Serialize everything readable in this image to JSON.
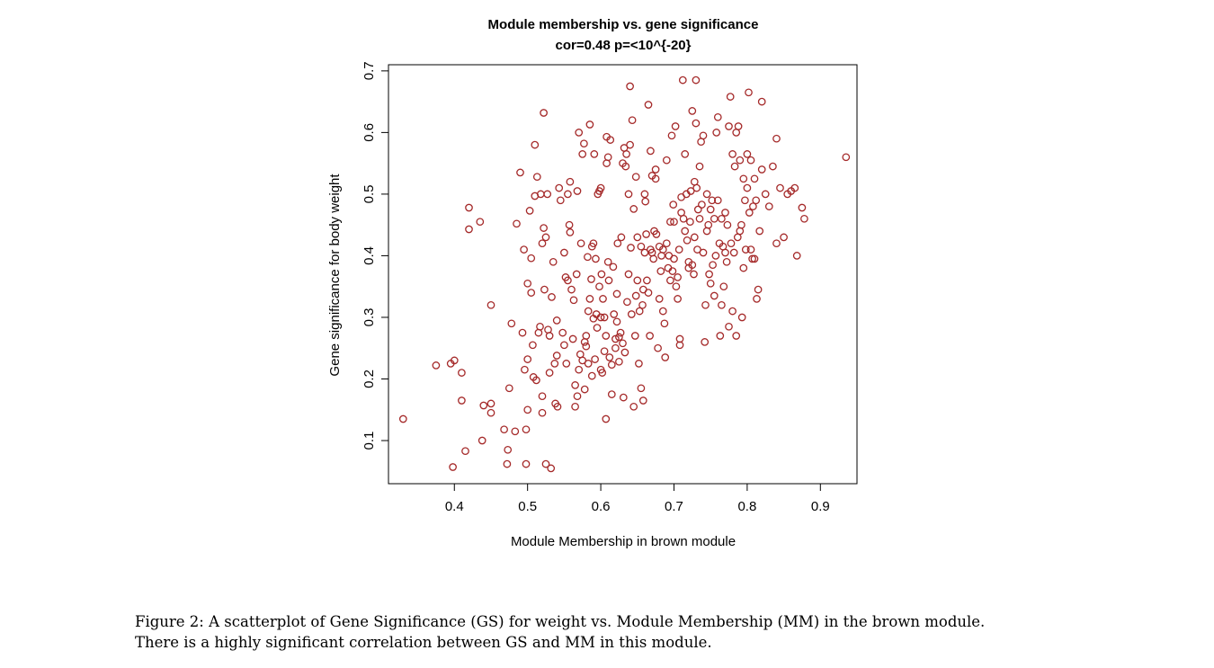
{
  "chart_data": {
    "type": "scatter",
    "title": "Module membership vs. gene significance",
    "subtitle": "cor=0.48 p=<10^{-20}",
    "xlabel": "Module Membership in brown module",
    "ylabel": "Gene significance for body weight",
    "xlim": [
      0.31,
      0.95
    ],
    "ylim": [
      0.03,
      0.71
    ],
    "x_ticks": [
      0.4,
      0.5,
      0.6,
      0.7,
      0.8,
      0.9
    ],
    "y_ticks": [
      0.1,
      0.2,
      0.3,
      0.4,
      0.5,
      0.6,
      0.7
    ],
    "x_tick_labels": [
      "0.4",
      "0.5",
      "0.6",
      "0.7",
      "0.8",
      "0.9"
    ],
    "y_tick_labels": [
      "0.1",
      "0.2",
      "0.3",
      "0.4",
      "0.5",
      "0.6",
      "0.7"
    ],
    "grid": false,
    "marker_color": "#a52a2a",
    "points": [
      [
        0.33,
        0.135
      ],
      [
        0.375,
        0.222
      ],
      [
        0.395,
        0.225
      ],
      [
        0.4,
        0.23
      ],
      [
        0.398,
        0.057
      ],
      [
        0.41,
        0.21
      ],
      [
        0.41,
        0.165
      ],
      [
        0.415,
        0.083
      ],
      [
        0.42,
        0.478
      ],
      [
        0.42,
        0.443
      ],
      [
        0.435,
        0.455
      ],
      [
        0.438,
        0.1
      ],
      [
        0.44,
        0.157
      ],
      [
        0.45,
        0.145
      ],
      [
        0.45,
        0.16
      ],
      [
        0.45,
        0.32
      ],
      [
        0.468,
        0.118
      ],
      [
        0.472,
        0.062
      ],
      [
        0.473,
        0.085
      ],
      [
        0.475,
        0.185
      ],
      [
        0.478,
        0.29
      ],
      [
        0.483,
        0.115
      ],
      [
        0.485,
        0.452
      ],
      [
        0.49,
        0.535
      ],
      [
        0.493,
        0.275
      ],
      [
        0.495,
        0.41
      ],
      [
        0.496,
        0.215
      ],
      [
        0.498,
        0.118
      ],
      [
        0.498,
        0.062
      ],
      [
        0.5,
        0.232
      ],
      [
        0.5,
        0.355
      ],
      [
        0.5,
        0.15
      ],
      [
        0.503,
        0.473
      ],
      [
        0.505,
        0.34
      ],
      [
        0.505,
        0.396
      ],
      [
        0.507,
        0.255
      ],
      [
        0.508,
        0.203
      ],
      [
        0.51,
        0.497
      ],
      [
        0.51,
        0.58
      ],
      [
        0.512,
        0.198
      ],
      [
        0.513,
        0.528
      ],
      [
        0.515,
        0.275
      ],
      [
        0.517,
        0.285
      ],
      [
        0.518,
        0.5
      ],
      [
        0.52,
        0.172
      ],
      [
        0.52,
        0.145
      ],
      [
        0.52,
        0.42
      ],
      [
        0.522,
        0.632
      ],
      [
        0.522,
        0.445
      ],
      [
        0.523,
        0.345
      ],
      [
        0.525,
        0.43
      ],
      [
        0.525,
        0.062
      ],
      [
        0.527,
        0.5
      ],
      [
        0.528,
        0.28
      ],
      [
        0.53,
        0.27
      ],
      [
        0.53,
        0.21
      ],
      [
        0.532,
        0.055
      ],
      [
        0.533,
        0.333
      ],
      [
        0.535,
        0.39
      ],
      [
        0.537,
        0.225
      ],
      [
        0.538,
        0.16
      ],
      [
        0.54,
        0.238
      ],
      [
        0.54,
        0.295
      ],
      [
        0.541,
        0.155
      ],
      [
        0.543,
        0.51
      ],
      [
        0.545,
        0.49
      ],
      [
        0.548,
        0.275
      ],
      [
        0.55,
        0.255
      ],
      [
        0.55,
        0.405
      ],
      [
        0.552,
        0.365
      ],
      [
        0.553,
        0.225
      ],
      [
        0.555,
        0.5
      ],
      [
        0.555,
        0.36
      ],
      [
        0.557,
        0.45
      ],
      [
        0.558,
        0.52
      ],
      [
        0.558,
        0.438
      ],
      [
        0.56,
        0.345
      ],
      [
        0.562,
        0.265
      ],
      [
        0.563,
        0.328
      ],
      [
        0.565,
        0.19
      ],
      [
        0.565,
        0.155
      ],
      [
        0.567,
        0.37
      ],
      [
        0.568,
        0.505
      ],
      [
        0.568,
        0.172
      ],
      [
        0.57,
        0.6
      ],
      [
        0.57,
        0.215
      ],
      [
        0.572,
        0.24
      ],
      [
        0.573,
        0.42
      ],
      [
        0.575,
        0.23
      ],
      [
        0.575,
        0.565
      ],
      [
        0.577,
        0.582
      ],
      [
        0.578,
        0.183
      ],
      [
        0.578,
        0.26
      ],
      [
        0.58,
        0.27
      ],
      [
        0.58,
        0.253
      ],
      [
        0.582,
        0.398
      ],
      [
        0.583,
        0.31
      ],
      [
        0.583,
        0.225
      ],
      [
        0.585,
        0.33
      ],
      [
        0.585,
        0.613
      ],
      [
        0.587,
        0.362
      ],
      [
        0.588,
        0.415
      ],
      [
        0.588,
        0.205
      ],
      [
        0.59,
        0.298
      ],
      [
        0.59,
        0.42
      ],
      [
        0.591,
        0.565
      ],
      [
        0.592,
        0.232
      ],
      [
        0.593,
        0.395
      ],
      [
        0.594,
        0.305
      ],
      [
        0.595,
        0.283
      ],
      [
        0.596,
        0.5
      ],
      [
        0.598,
        0.35
      ],
      [
        0.598,
        0.505
      ],
      [
        0.6,
        0.3
      ],
      [
        0.6,
        0.51
      ],
      [
        0.6,
        0.215
      ],
      [
        0.601,
        0.37
      ],
      [
        0.602,
        0.21
      ],
      [
        0.603,
        0.33
      ],
      [
        0.605,
        0.3
      ],
      [
        0.605,
        0.245
      ],
      [
        0.607,
        0.135
      ],
      [
        0.607,
        0.27
      ],
      [
        0.608,
        0.55
      ],
      [
        0.608,
        0.593
      ],
      [
        0.61,
        0.39
      ],
      [
        0.61,
        0.56
      ],
      [
        0.611,
        0.36
      ],
      [
        0.612,
        0.235
      ],
      [
        0.613,
        0.588
      ],
      [
        0.615,
        0.175
      ],
      [
        0.615,
        0.223
      ],
      [
        0.617,
        0.382
      ],
      [
        0.618,
        0.305
      ],
      [
        0.62,
        0.265
      ],
      [
        0.62,
        0.25
      ],
      [
        0.622,
        0.293
      ],
      [
        0.622,
        0.338
      ],
      [
        0.623,
        0.42
      ],
      [
        0.625,
        0.228
      ],
      [
        0.625,
        0.268
      ],
      [
        0.627,
        0.275
      ],
      [
        0.628,
        0.43
      ],
      [
        0.63,
        0.258
      ],
      [
        0.63,
        0.55
      ],
      [
        0.631,
        0.17
      ],
      [
        0.632,
        0.575
      ],
      [
        0.633,
        0.243
      ],
      [
        0.634,
        0.545
      ],
      [
        0.635,
        0.565
      ],
      [
        0.636,
        0.325
      ],
      [
        0.638,
        0.5
      ],
      [
        0.638,
        0.37
      ],
      [
        0.64,
        0.675
      ],
      [
        0.64,
        0.58
      ],
      [
        0.641,
        0.413
      ],
      [
        0.642,
        0.305
      ],
      [
        0.643,
        0.62
      ],
      [
        0.645,
        0.476
      ],
      [
        0.645,
        0.155
      ],
      [
        0.647,
        0.27
      ],
      [
        0.648,
        0.335
      ],
      [
        0.648,
        0.528
      ],
      [
        0.65,
        0.36
      ],
      [
        0.65,
        0.43
      ],
      [
        0.652,
        0.225
      ],
      [
        0.653,
        0.31
      ],
      [
        0.655,
        0.185
      ],
      [
        0.655,
        0.415
      ],
      [
        0.657,
        0.32
      ],
      [
        0.658,
        0.165
      ],
      [
        0.658,
        0.345
      ],
      [
        0.66,
        0.405
      ],
      [
        0.66,
        0.5
      ],
      [
        0.661,
        0.488
      ],
      [
        0.662,
        0.435
      ],
      [
        0.663,
        0.36
      ],
      [
        0.665,
        0.645
      ],
      [
        0.665,
        0.34
      ],
      [
        0.667,
        0.27
      ],
      [
        0.668,
        0.41
      ],
      [
        0.668,
        0.57
      ],
      [
        0.67,
        0.53
      ],
      [
        0.67,
        0.405
      ],
      [
        0.672,
        0.395
      ],
      [
        0.673,
        0.44
      ],
      [
        0.675,
        0.525
      ],
      [
        0.675,
        0.54
      ],
      [
        0.676,
        0.435
      ],
      [
        0.678,
        0.25
      ],
      [
        0.68,
        0.415
      ],
      [
        0.68,
        0.33
      ],
      [
        0.682,
        0.375
      ],
      [
        0.683,
        0.4
      ],
      [
        0.685,
        0.31
      ],
      [
        0.685,
        0.41
      ],
      [
        0.687,
        0.29
      ],
      [
        0.688,
        0.235
      ],
      [
        0.69,
        0.555
      ],
      [
        0.69,
        0.42
      ],
      [
        0.692,
        0.38
      ],
      [
        0.693,
        0.4
      ],
      [
        0.695,
        0.36
      ],
      [
        0.695,
        0.455
      ],
      [
        0.697,
        0.595
      ],
      [
        0.698,
        0.375
      ],
      [
        0.699,
        0.483
      ],
      [
        0.7,
        0.395
      ],
      [
        0.7,
        0.455
      ],
      [
        0.702,
        0.61
      ],
      [
        0.703,
        0.35
      ],
      [
        0.705,
        0.365
      ],
      [
        0.705,
        0.33
      ],
      [
        0.707,
        0.41
      ],
      [
        0.708,
        0.265
      ],
      [
        0.708,
        0.255
      ],
      [
        0.71,
        0.495
      ],
      [
        0.71,
        0.47
      ],
      [
        0.712,
        0.685
      ],
      [
        0.713,
        0.46
      ],
      [
        0.715,
        0.565
      ],
      [
        0.715,
        0.44
      ],
      [
        0.717,
        0.5
      ],
      [
        0.718,
        0.425
      ],
      [
        0.72,
        0.38
      ],
      [
        0.72,
        0.39
      ],
      [
        0.722,
        0.455
      ],
      [
        0.723,
        0.505
      ],
      [
        0.725,
        0.635
      ],
      [
        0.725,
        0.385
      ],
      [
        0.727,
        0.37
      ],
      [
        0.728,
        0.43
      ],
      [
        0.728,
        0.52
      ],
      [
        0.73,
        0.685
      ],
      [
        0.73,
        0.615
      ],
      [
        0.731,
        0.51
      ],
      [
        0.732,
        0.41
      ],
      [
        0.733,
        0.475
      ],
      [
        0.735,
        0.545
      ],
      [
        0.735,
        0.46
      ],
      [
        0.737,
        0.585
      ],
      [
        0.738,
        0.483
      ],
      [
        0.74,
        0.405
      ],
      [
        0.74,
        0.595
      ],
      [
        0.742,
        0.26
      ],
      [
        0.743,
        0.32
      ],
      [
        0.745,
        0.44
      ],
      [
        0.745,
        0.5
      ],
      [
        0.747,
        0.45
      ],
      [
        0.748,
        0.37
      ],
      [
        0.75,
        0.475
      ],
      [
        0.75,
        0.355
      ],
      [
        0.752,
        0.49
      ],
      [
        0.753,
        0.385
      ],
      [
        0.755,
        0.46
      ],
      [
        0.755,
        0.335
      ],
      [
        0.757,
        0.4
      ],
      [
        0.758,
        0.6
      ],
      [
        0.76,
        0.625
      ],
      [
        0.76,
        0.49
      ],
      [
        0.762,
        0.42
      ],
      [
        0.763,
        0.27
      ],
      [
        0.765,
        0.32
      ],
      [
        0.765,
        0.46
      ],
      [
        0.767,
        0.415
      ],
      [
        0.768,
        0.35
      ],
      [
        0.77,
        0.47
      ],
      [
        0.77,
        0.405
      ],
      [
        0.772,
        0.39
      ],
      [
        0.773,
        0.45
      ],
      [
        0.775,
        0.61
      ],
      [
        0.775,
        0.285
      ],
      [
        0.777,
        0.658
      ],
      [
        0.778,
        0.42
      ],
      [
        0.78,
        0.565
      ],
      [
        0.78,
        0.31
      ],
      [
        0.782,
        0.405
      ],
      [
        0.783,
        0.545
      ],
      [
        0.785,
        0.6
      ],
      [
        0.785,
        0.27
      ],
      [
        0.787,
        0.43
      ],
      [
        0.788,
        0.61
      ],
      [
        0.79,
        0.555
      ],
      [
        0.79,
        0.44
      ],
      [
        0.792,
        0.45
      ],
      [
        0.793,
        0.3
      ],
      [
        0.795,
        0.525
      ],
      [
        0.795,
        0.38
      ],
      [
        0.797,
        0.49
      ],
      [
        0.798,
        0.41
      ],
      [
        0.8,
        0.565
      ],
      [
        0.8,
        0.51
      ],
      [
        0.802,
        0.665
      ],
      [
        0.803,
        0.47
      ],
      [
        0.805,
        0.555
      ],
      [
        0.805,
        0.41
      ],
      [
        0.807,
        0.395
      ],
      [
        0.808,
        0.48
      ],
      [
        0.81,
        0.525
      ],
      [
        0.81,
        0.395
      ],
      [
        0.812,
        0.49
      ],
      [
        0.813,
        0.33
      ],
      [
        0.815,
        0.345
      ],
      [
        0.817,
        0.44
      ],
      [
        0.82,
        0.54
      ],
      [
        0.82,
        0.65
      ],
      [
        0.825,
        0.5
      ],
      [
        0.83,
        0.48
      ],
      [
        0.835,
        0.545
      ],
      [
        0.84,
        0.59
      ],
      [
        0.84,
        0.42
      ],
      [
        0.845,
        0.51
      ],
      [
        0.85,
        0.43
      ],
      [
        0.855,
        0.5
      ],
      [
        0.86,
        0.505
      ],
      [
        0.865,
        0.51
      ],
      [
        0.868,
        0.4
      ],
      [
        0.875,
        0.478
      ],
      [
        0.878,
        0.46
      ],
      [
        0.935,
        0.56
      ]
    ]
  },
  "caption": {
    "line1": "Figure 2: A scatterplot of Gene Significance (GS) for weight vs. Module Membership (MM) in the brown module.",
    "line2": "There is a highly significant correlation between GS and MM in this module."
  }
}
